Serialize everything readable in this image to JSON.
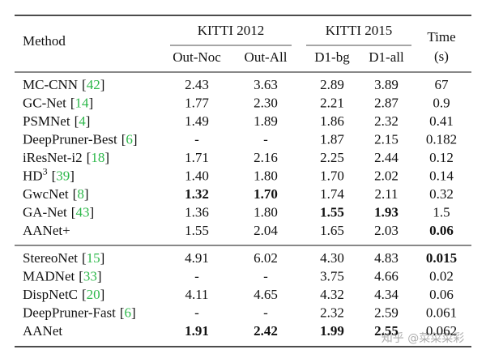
{
  "table": {
    "header": {
      "method": "Method",
      "groups": [
        {
          "label": "KITTI 2012",
          "columns": [
            "Out-Noc",
            "Out-All"
          ]
        },
        {
          "label": "KITTI 2015",
          "columns": [
            "D1-bg",
            "D1-all"
          ]
        }
      ],
      "time": {
        "label": "Time",
        "unit": "(s)"
      }
    },
    "sections": [
      [
        {
          "name": "MC-CNN",
          "ref": "[42]",
          "cells": [
            "2.43",
            "3.63",
            "2.89",
            "3.89",
            "67"
          ],
          "bold": []
        },
        {
          "name": "GC-Net",
          "ref": "[14]",
          "cells": [
            "1.77",
            "2.30",
            "2.21",
            "2.87",
            "0.9"
          ],
          "bold": []
        },
        {
          "name": "PSMNet",
          "ref": "[4]",
          "cells": [
            "1.49",
            "1.89",
            "1.86",
            "2.32",
            "0.41"
          ],
          "bold": []
        },
        {
          "name": "DeepPruner-Best",
          "ref": "[6]",
          "cells": [
            "-",
            "-",
            "1.87",
            "2.15",
            "0.182"
          ],
          "bold": []
        },
        {
          "name": "iResNet-i2",
          "ref": "[18]",
          "cells": [
            "1.71",
            "2.16",
            "2.25",
            "2.44",
            "0.12"
          ],
          "bold": []
        },
        {
          "name": "HD",
          "sup": "3",
          "ref": "[39]",
          "cells": [
            "1.40",
            "1.80",
            "1.70",
            "2.02",
            "0.14"
          ],
          "bold": []
        },
        {
          "name": "GwcNet",
          "ref": "[8]",
          "cells": [
            "1.32",
            "1.70",
            "1.74",
            "2.11",
            "0.32"
          ],
          "bold": [
            0,
            1
          ]
        },
        {
          "name": "GA-Net",
          "ref": "[43]",
          "cells": [
            "1.36",
            "1.80",
            "1.55",
            "1.93",
            "1.5"
          ],
          "bold": [
            2,
            3
          ]
        },
        {
          "name": "AANet+",
          "cells": [
            "1.55",
            "2.04",
            "1.65",
            "2.03",
            "0.06"
          ],
          "bold": [
            4
          ]
        }
      ],
      [
        {
          "name": "StereoNet",
          "ref": "[15]",
          "cells": [
            "4.91",
            "6.02",
            "4.30",
            "4.83",
            "0.015"
          ],
          "bold": [
            4
          ]
        },
        {
          "name": "MADNet",
          "ref": "[33]",
          "cells": [
            "-",
            "-",
            "3.75",
            "4.66",
            "0.02"
          ],
          "bold": []
        },
        {
          "name": "DispNetC",
          "ref": "[20]",
          "cells": [
            "4.11",
            "4.65",
            "4.32",
            "4.34",
            "0.06"
          ],
          "bold": []
        },
        {
          "name": "DeepPruner-Fast",
          "ref": "[6]",
          "cells": [
            "-",
            "-",
            "2.32",
            "2.59",
            "0.061"
          ],
          "bold": []
        },
        {
          "name": "AANet",
          "cells": [
            "1.91",
            "2.42",
            "1.99",
            "2.55",
            "0.062"
          ],
          "bold": [
            0,
            1,
            2,
            3
          ]
        }
      ]
    ]
  },
  "watermark": "知乎 @菜菜菜彩"
}
